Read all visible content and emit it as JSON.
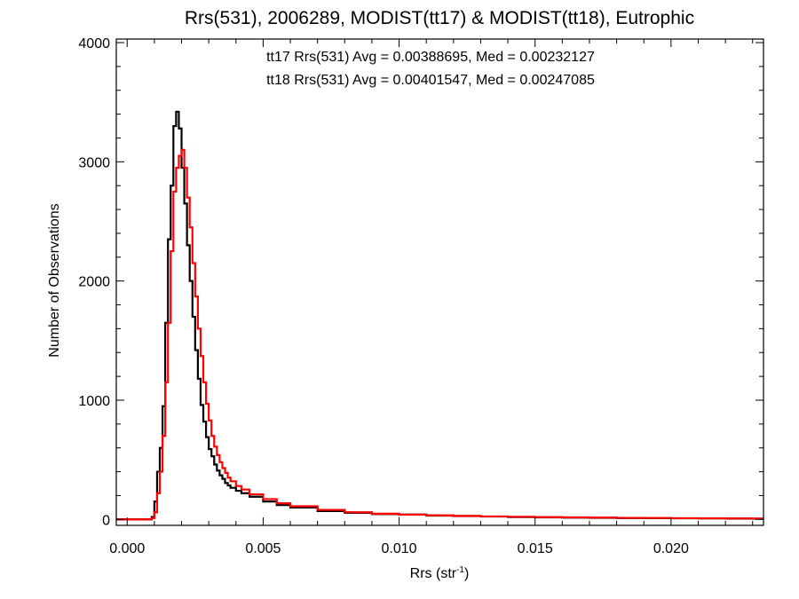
{
  "chart_data": {
    "type": "line",
    "title": "Rrs(531), 2006289, MODIST(tt17) & MODIST(tt18), Eutrophic",
    "xlabel": "Rrs (str",
    "xlabel_sup": "-1",
    "xlabel_close": ")",
    "ylabel": "Number of Observations",
    "xlim": [
      -0.0004,
      0.0234
    ],
    "ylim": [
      -50,
      4030
    ],
    "x_ticks": [
      0.0,
      0.005,
      0.01,
      0.015,
      0.02
    ],
    "x_tick_labels": [
      "0.000",
      "0.005",
      "0.010",
      "0.015",
      "0.020"
    ],
    "y_ticks": [
      0,
      1000,
      2000,
      3000,
      4000
    ],
    "y_tick_labels": [
      "0",
      "1000",
      "2000",
      "3000",
      "4000"
    ],
    "grid": false,
    "step_style": "histogram",
    "annotations": [
      {
        "text": "tt17 Rrs(531) Avg = 0.00388695, Med = 0.00232127",
        "color": "#000000"
      },
      {
        "text": "tt18 Rrs(531) Avg = 0.00401547, Med = 0.00247085",
        "color": "#ff0000"
      }
    ],
    "series": [
      {
        "color": "#000000",
        "x": [
          -0.0004,
          0.0008,
          0.0009,
          0.001,
          0.0011,
          0.0012,
          0.0013,
          0.0014,
          0.0015,
          0.0016,
          0.0017,
          0.0018,
          0.0019,
          0.002,
          0.0021,
          0.0022,
          0.0023,
          0.0024,
          0.0025,
          0.0026,
          0.0027,
          0.0028,
          0.0029,
          0.003,
          0.0031,
          0.0032,
          0.0033,
          0.0034,
          0.0035,
          0.0036,
          0.0037,
          0.0038,
          0.004,
          0.0042,
          0.0045,
          0.005,
          0.0055,
          0.006,
          0.007,
          0.008,
          0.009,
          0.01,
          0.011,
          0.012,
          0.013,
          0.014,
          0.015,
          0.016,
          0.017,
          0.018,
          0.019,
          0.02,
          0.021,
          0.022,
          0.023,
          0.0234
        ],
        "y": [
          0,
          0,
          20,
          150,
          400,
          600,
          950,
          1650,
          2350,
          2800,
          3300,
          3420,
          3280,
          2950,
          2650,
          2300,
          2000,
          1700,
          1420,
          1180,
          960,
          820,
          690,
          590,
          530,
          460,
          410,
          370,
          340,
          305,
          285,
          265,
          240,
          220,
          190,
          150,
          120,
          100,
          70,
          55,
          45,
          40,
          32,
          28,
          24,
          20,
          17,
          15,
          13,
          11,
          10,
          9,
          8,
          7,
          6,
          6
        ]
      },
      {
        "color": "#ff0000",
        "x": [
          -0.0004,
          0.0008,
          0.0009,
          0.001,
          0.0011,
          0.0012,
          0.0013,
          0.0014,
          0.0015,
          0.0016,
          0.0017,
          0.0018,
          0.0019,
          0.002,
          0.0021,
          0.0022,
          0.0023,
          0.0024,
          0.0025,
          0.0026,
          0.0027,
          0.0028,
          0.0029,
          0.003,
          0.0031,
          0.0032,
          0.0033,
          0.0034,
          0.0035,
          0.0036,
          0.0037,
          0.0038,
          0.004,
          0.0042,
          0.0045,
          0.005,
          0.0055,
          0.006,
          0.007,
          0.008,
          0.009,
          0.01,
          0.011,
          0.012,
          0.013,
          0.014,
          0.015,
          0.016,
          0.017,
          0.018,
          0.019,
          0.02,
          0.021,
          0.022,
          0.023,
          0.0234
        ],
        "y": [
          0,
          0,
          10,
          60,
          220,
          400,
          700,
          1150,
          1650,
          2250,
          2750,
          2950,
          3050,
          3100,
          2950,
          2700,
          2450,
          2150,
          1870,
          1600,
          1370,
          1150,
          970,
          830,
          700,
          610,
          540,
          480,
          430,
          390,
          350,
          320,
          280,
          250,
          210,
          170,
          135,
          110,
          80,
          60,
          48,
          40,
          34,
          29,
          25,
          22,
          19,
          17,
          15,
          13,
          12,
          10,
          9,
          8,
          7,
          7
        ]
      }
    ]
  }
}
